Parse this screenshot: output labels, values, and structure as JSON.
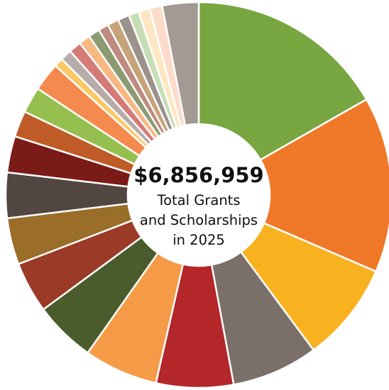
{
  "chart_data": {
    "type": "donut",
    "center_label": {
      "amount": "$6,856,959",
      "lines": [
        "Total Grants",
        "and Scholarships",
        "in 2025"
      ]
    },
    "slices": [
      {
        "value": 17.6,
        "color": "#78a641"
      },
      {
        "value": 15.5,
        "color": "#f07829"
      },
      {
        "value": 8.8,
        "color": "#f9b21f"
      },
      {
        "value": 7.6,
        "color": "#7a6f69"
      },
      {
        "value": 6.8,
        "color": "#b3272a"
      },
      {
        "value": 6.5,
        "color": "#f59a46"
      },
      {
        "value": 5.4,
        "color": "#4a5c2c"
      },
      {
        "value": 4.5,
        "color": "#9b3a26"
      },
      {
        "value": 4.1,
        "color": "#9a6d29"
      },
      {
        "value": 4.0,
        "color": "#524641"
      },
      {
        "value": 3.2,
        "color": "#7b1b18"
      },
      {
        "value": 2.3,
        "color": "#bf5b26"
      },
      {
        "value": 2.3,
        "color": "#95c04f"
      },
      {
        "value": 2.5,
        "color": "#f48a4d"
      },
      {
        "value": 0.8,
        "color": "#fcc866"
      },
      {
        "value": 1.0,
        "color": "#b7acaa"
      },
      {
        "value": 1.1,
        "color": "#d47b78"
      },
      {
        "value": 1.0,
        "color": "#f7b882"
      },
      {
        "value": 1.0,
        "color": "#8c9b72"
      },
      {
        "value": 0.9,
        "color": "#bf8a80"
      },
      {
        "value": 1.0,
        "color": "#c7a37a"
      },
      {
        "value": 1.0,
        "color": "#9b928c"
      },
      {
        "value": 0.9,
        "color": "#c7ddb5"
      },
      {
        "value": 1.0,
        "color": "#fde7c3"
      },
      {
        "value": 1.1,
        "color": "#fddbcb"
      },
      {
        "value": 3.2,
        "color": "#a49a94"
      }
    ]
  }
}
